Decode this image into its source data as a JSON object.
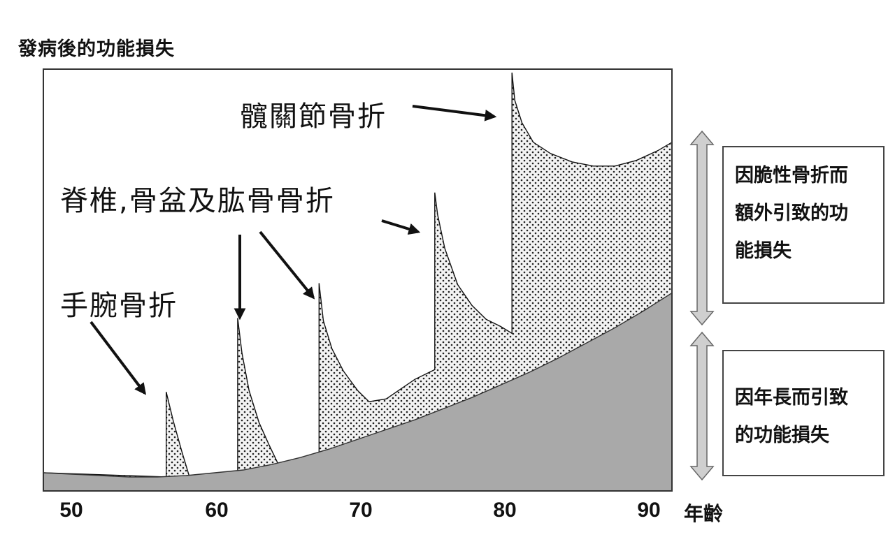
{
  "chart_data": {
    "type": "area",
    "ylabel": "發病後的功能損失",
    "xlabel": "年齡",
    "xlim": [
      48,
      92
    ],
    "x_ticks": [
      "50",
      "60",
      "70",
      "80",
      "90"
    ],
    "grid": false,
    "legend_placement": "right",
    "series": [
      {
        "name": "因年長而引致的功能損失",
        "fill": "gray",
        "x": [
          48,
          50,
          52,
          54,
          56,
          58,
          60,
          62,
          64,
          66,
          68,
          70,
          72,
          74,
          76,
          78,
          80,
          82,
          84,
          86,
          88,
          90,
          92
        ],
        "y": [
          1.3,
          1.2,
          1.1,
          1.0,
          1.0,
          1.1,
          1.3,
          1.5,
          1.9,
          2.4,
          3.0,
          3.7,
          4.4,
          5.1,
          5.9,
          6.7,
          7.6,
          8.5,
          9.5,
          10.6,
          11.7,
          12.9,
          14.2
        ]
      },
      {
        "name": "因脆性骨折而額外引致的功能損失",
        "fill": "dotted",
        "x": [
          48,
          56.6,
          56.6,
          57.1,
          57.7,
          58.2,
          61.6,
          61.6,
          61.9,
          62.4,
          63.1,
          63.8,
          64.5,
          67.3,
          67.3,
          67.6,
          68.2,
          69.0,
          70.0,
          70.8,
          72.0,
          74.0,
          75.4,
          75.4,
          75.6,
          76.1,
          77.0,
          78.0,
          79.0,
          80.0,
          80.8,
          80.8,
          81.0,
          81.5,
          82.3,
          83.5,
          85.0,
          86.5,
          88.0,
          89.5,
          91.0,
          92.0
        ],
        "y": [
          1.3,
          1.0,
          7.1,
          5.0,
          2.8,
          1.1,
          1.3,
          12.4,
          9.9,
          7.2,
          4.9,
          3.3,
          1.8,
          2.6,
          14.9,
          12.2,
          10.2,
          8.6,
          7.2,
          6.4,
          6.6,
          8.0,
          8.7,
          21.4,
          19.8,
          17.4,
          14.8,
          13.3,
          12.3,
          11.8,
          11.3,
          30.0,
          28.0,
          26.4,
          25.0,
          24.2,
          23.6,
          23.3,
          23.3,
          23.7,
          24.4,
          25.0
        ]
      }
    ],
    "annotations": [
      {
        "text": "髖關節骨折"
      },
      {
        "text": "脊椎,骨盆及肱骨骨折"
      },
      {
        "text": "手腕骨折"
      }
    ],
    "legend": [
      {
        "lines": [
          "因脆性骨折而",
          "額外引致的功",
          "能損失"
        ]
      },
      {
        "lines": [
          "因年長而引致",
          "的功能損失"
        ]
      }
    ]
  }
}
